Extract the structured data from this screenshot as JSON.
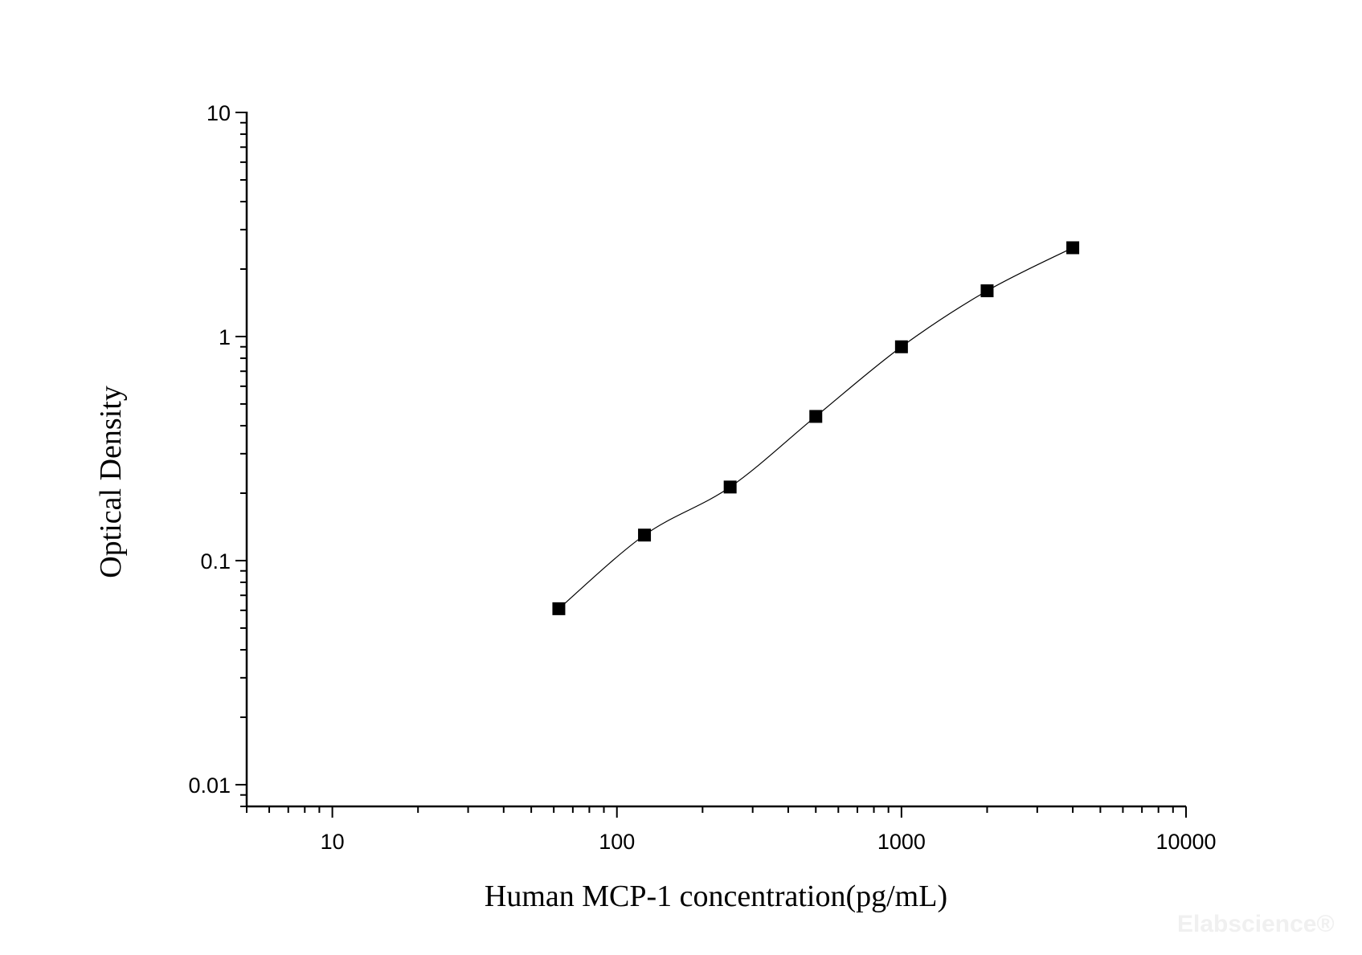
{
  "chart_data": {
    "type": "scatter",
    "title": "",
    "xlabel": "Human MCP-1 concentration(pg/mL)",
    "ylabel": "Optical Density",
    "x_scale": "log",
    "y_scale": "log",
    "xlim": [
      5,
      10000
    ],
    "ylim": [
      0.008,
      10
    ],
    "x_ticks": [
      "10",
      "100",
      "1000",
      "10000"
    ],
    "y_ticks": [
      "0.01",
      "0.1",
      "1",
      "10"
    ],
    "grid": false,
    "legend": "none",
    "marker": "square",
    "fit_line": true,
    "series": [
      {
        "x": [
          62.5,
          125,
          250,
          500,
          1000,
          2000,
          4000
        ],
        "y": [
          0.061,
          0.13,
          0.213,
          0.44,
          0.9,
          1.6,
          2.49
        ]
      }
    ],
    "colors": {
      "points": "#000000",
      "line": "#000000"
    }
  },
  "watermark": "Elabscience®"
}
